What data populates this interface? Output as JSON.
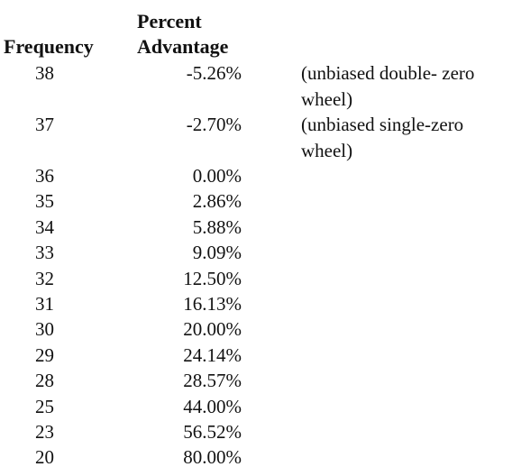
{
  "table": {
    "headers": {
      "frequency": "Frequency",
      "percent_line1": "Percent",
      "percent_line2": "Advantage"
    },
    "rows": [
      {
        "frequency": "38",
        "advantage": "-5.26%",
        "note": "(unbiased double- zero wheel)"
      },
      {
        "frequency": "37",
        "advantage": "-2.70%",
        "note": "(unbiased single-zero wheel)"
      },
      {
        "frequency": "36",
        "advantage": "0.00%",
        "note": ""
      },
      {
        "frequency": "35",
        "advantage": "2.86%",
        "note": ""
      },
      {
        "frequency": "34",
        "advantage": "5.88%",
        "note": ""
      },
      {
        "frequency": "33",
        "advantage": "9.09%",
        "note": ""
      },
      {
        "frequency": "32",
        "advantage": "12.50%",
        "note": ""
      },
      {
        "frequency": "31",
        "advantage": "16.13%",
        "note": ""
      },
      {
        "frequency": "30",
        "advantage": "20.00%",
        "note": ""
      },
      {
        "frequency": "29",
        "advantage": "24.14%",
        "note": ""
      },
      {
        "frequency": "28",
        "advantage": "28.57%",
        "note": ""
      },
      {
        "frequency": "25",
        "advantage": "44.00%",
        "note": ""
      },
      {
        "frequency": "23",
        "advantage": "56.52%",
        "note": ""
      },
      {
        "frequency": "20",
        "advantage": "80.00%",
        "note": ""
      }
    ]
  }
}
